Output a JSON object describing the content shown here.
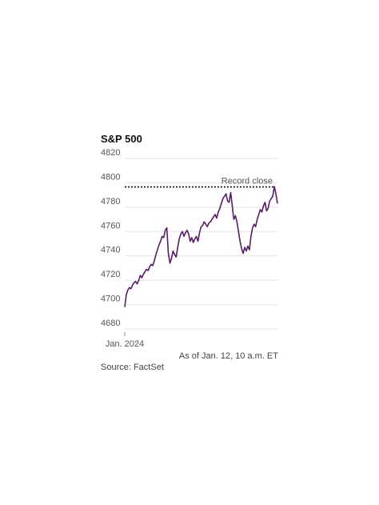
{
  "chart_data": {
    "type": "line",
    "title": "S&P 500",
    "y_ticks": [
      4680,
      4700,
      4720,
      4740,
      4760,
      4780,
      4800,
      4820
    ],
    "ylim": [
      4680,
      4820
    ],
    "x_tick_labels": [
      "Jan. 2024"
    ],
    "grid": true,
    "series_color": "#5b1a6e",
    "reference_line": {
      "label": "Record close",
      "value": 4796.6
    },
    "series": [
      {
        "values": [
          4698,
          4708,
          4712,
          4714,
          4713,
          4716,
          4718,
          4719,
          4717,
          4720,
          4724,
          4722,
          4725,
          4727,
          4729,
          4728,
          4731,
          4733,
          4732,
          4736,
          4741,
          4745,
          4749,
          4752,
          4756,
          4755,
          4761,
          4763,
          4742,
          4734,
          4738,
          4744,
          4741,
          4739,
          4747,
          4754,
          4758,
          4760,
          4756,
          4759,
          4761,
          4758,
          4752,
          4755,
          4751,
          4754,
          4756,
          4752,
          4759,
          4764,
          4765,
          4768,
          4766,
          4764,
          4767,
          4768,
          4770,
          4772,
          4774,
          4771,
          4776,
          4779,
          4783,
          4787,
          4789,
          4791,
          4785,
          4784,
          4792,
          4781,
          4770,
          4773,
          4768,
          4760,
          4752,
          4746,
          4742,
          4747,
          4744,
          4748,
          4745,
          4756,
          4763,
          4766,
          4764,
          4770,
          4774,
          4778,
          4776,
          4781,
          4784,
          4777,
          4779,
          4785,
          4787,
          4789,
          4797,
          4791,
          4783
        ]
      }
    ]
  },
  "footer": {
    "as_of": "As of Jan. 12, 10 a.m. ET",
    "source": "Source: FactSet"
  }
}
